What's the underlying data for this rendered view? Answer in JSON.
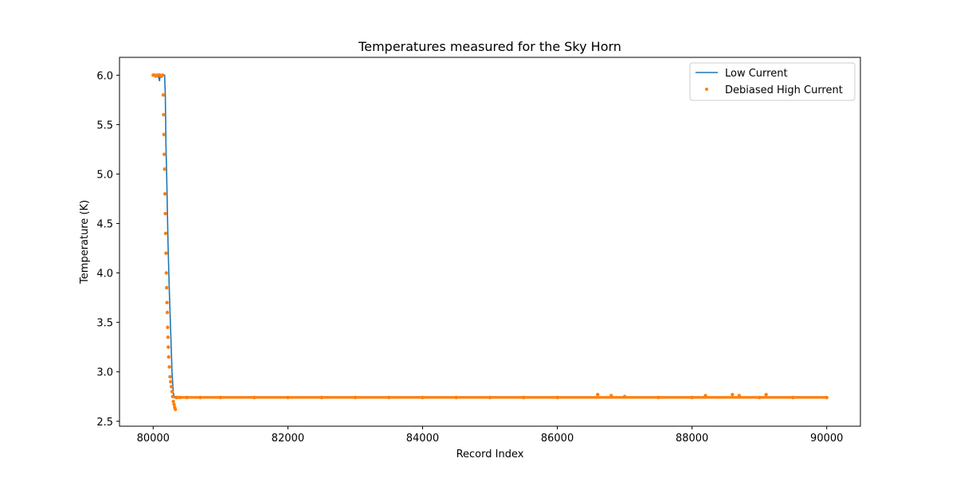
{
  "chart_data": {
    "type": "line",
    "title": "Temperatures measured for the Sky Horn",
    "xlabel": "Record Index",
    "ylabel": "Temperature (K)",
    "xlim": [
      79500,
      90500
    ],
    "ylim": [
      2.45,
      6.18
    ],
    "xticks": [
      80000,
      82000,
      84000,
      86000,
      88000,
      90000
    ],
    "yticks": [
      2.5,
      3.0,
      3.5,
      4.0,
      4.5,
      5.0,
      5.5,
      6.0
    ],
    "grid": false,
    "legend_position": "top-right",
    "colors": {
      "low": "#1f77b4",
      "high": "#ff7f0e"
    },
    "series": [
      {
        "name": "Low Current",
        "kind": "line",
        "x": [
          80000,
          80050,
          80080,
          80095,
          80100,
          80110,
          80120,
          80150,
          80170,
          80180,
          80190,
          80200,
          80220,
          80240,
          80260,
          80280,
          80300,
          80320,
          80340,
          80360,
          80400,
          81000,
          82000,
          83000,
          84000,
          85000,
          86000,
          86600,
          87000,
          88000,
          88600,
          89000,
          90000
        ],
        "y": [
          6.0,
          6.0,
          5.98,
          5.94,
          6.0,
          5.97,
          6.0,
          6.0,
          6.0,
          5.8,
          5.3,
          5.0,
          4.3,
          3.8,
          3.4,
          3.0,
          2.78,
          2.74,
          2.74,
          2.74,
          2.74,
          2.74,
          2.74,
          2.74,
          2.74,
          2.74,
          2.74,
          2.74,
          2.74,
          2.74,
          2.74,
          2.74,
          2.74
        ]
      },
      {
        "name": "Debiased High Current",
        "kind": "scatter",
        "x": [
          80000,
          80020,
          80040,
          80060,
          80080,
          80100,
          80120,
          80140,
          80150,
          80155,
          80160,
          80165,
          80170,
          80175,
          80180,
          80185,
          80190,
          80195,
          80200,
          80205,
          80210,
          80215,
          80220,
          80225,
          80230,
          80240,
          80250,
          80260,
          80270,
          80280,
          80290,
          80300,
          80310,
          80320,
          80330,
          80340,
          80360,
          80400,
          80500,
          80700,
          81000,
          81500,
          82000,
          82500,
          83000,
          83500,
          84000,
          84500,
          85000,
          85500,
          86000,
          86600,
          86800,
          87000,
          87500,
          88000,
          88200,
          88600,
          88700,
          89000,
          89100,
          89500,
          90000
        ],
        "y": [
          6.0,
          6.0,
          5.99,
          6.0,
          6.0,
          6.0,
          5.99,
          6.0,
          5.8,
          5.6,
          5.4,
          5.2,
          5.05,
          4.8,
          4.6,
          4.4,
          4.2,
          4.0,
          3.85,
          3.7,
          3.6,
          3.45,
          3.35,
          3.25,
          3.15,
          3.05,
          2.95,
          2.9,
          2.85,
          2.8,
          2.75,
          2.7,
          2.67,
          2.64,
          2.62,
          2.74,
          2.74,
          2.74,
          2.74,
          2.74,
          2.74,
          2.74,
          2.74,
          2.74,
          2.74,
          2.74,
          2.74,
          2.74,
          2.74,
          2.74,
          2.74,
          2.77,
          2.76,
          2.75,
          2.74,
          2.74,
          2.76,
          2.77,
          2.76,
          2.74,
          2.77,
          2.74,
          2.74
        ]
      }
    ]
  }
}
